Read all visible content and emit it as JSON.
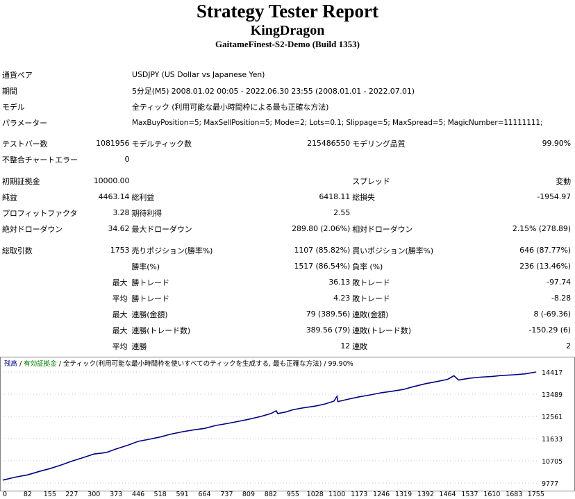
{
  "header": {
    "title": "Strategy Tester Report",
    "expert": "KingDragon",
    "server": "GaitameFinest-S2-Demo (Build 1353)"
  },
  "info": {
    "symbol_label": "通貨ペア",
    "symbol": "USDJPY (US Dollar vs Japanese Yen)",
    "period_label": "期間",
    "period": "5分足(M5) 2008.01.02 00:05 - 2022.06.30 23:55 (2008.01.01 - 2022.07.01)",
    "model_label": "モデル",
    "model": "全ティック (利用可能な最小時間枠による最も正確な方法)",
    "params_label": "パラメーター",
    "params": "MaxBuyPosition=5; MaxSellPosition=5; Mode=2; Lots=0.1; Slippage=5; MaxSpread=5; MagicNumber=11111111;"
  },
  "stats": {
    "bars_label": "テストバー数",
    "bars": "1081956",
    "ticks_label": "モデルティック数",
    "ticks": "215486550",
    "quality_label": "モデリング品質",
    "quality": "99.90%",
    "mismatch_label": "不整合チャートエラー",
    "mismatch": "0",
    "deposit_label": "初期証拠金",
    "deposit": "10000.00",
    "spread_label": "スプレッド",
    "spread": "変動",
    "net_label": "純益",
    "net": "4463.14",
    "gross_profit_label": "総利益",
    "gross_profit": "6418.11",
    "gross_loss_label": "総損失",
    "gross_loss": "-1954.97",
    "pf_label": "プロフィットファクタ",
    "pf": "3.28",
    "expected_label": "期待利得",
    "expected": "2.55",
    "abs_dd_label": "絶対ドローダウン",
    "abs_dd": "34.62",
    "max_dd_label": "最大ドローダウン",
    "max_dd": "289.80 (2.06%)",
    "rel_dd_label": "相対ドローダウン",
    "rel_dd": "2.15% (278.89)",
    "total_trades_label": "総取引数",
    "total_trades": "1753",
    "short_label": "売りポジション(勝率%)",
    "short": "1107 (85.82%)",
    "long_label": "買いポジション(勝率%)",
    "long": "646 (87.77%)",
    "win_rate_label": "勝率(%)",
    "win_rate": "1517 (86.54%)",
    "loss_rate_label": "負率 (%)",
    "loss_rate": "236 (13.46%)",
    "max_word": "最大",
    "avg_word": "平均",
    "largest_win_label": "勝トレード",
    "largest_win": "36.13",
    "largest_loss_label": "敗トレード",
    "largest_loss": "-97.74",
    "avg_win_label": "勝トレード",
    "avg_win": "4.23",
    "avg_loss_label": "敗トレード",
    "avg_loss": "-8.28",
    "max_cons_wins_label": "連勝(金額)",
    "max_cons_wins": "79 (389.56)",
    "max_cons_losses_label": "連敗(金額)",
    "max_cons_losses": "8 (-69.36)",
    "max_cons_profit_label": "連勝(トレード数)",
    "max_cons_profit": "389.56 (79)",
    "max_cons_loss_label": "連敗(トレード数)",
    "max_cons_loss": "-150.29 (6)",
    "avg_cons_wins_label": "連勝",
    "avg_cons_wins": "12",
    "avg_cons_losses_label": "連敗",
    "avg_cons_losses": "2"
  },
  "chart_legend": {
    "balance": "残高",
    "sep1": " / ",
    "equity": "有効証拠金",
    "sep2": " / ",
    "model": "全ティック(利用可能な最小時間枠を使いすべてのティックを生成する, 最も正確な方法)",
    "quality": " / 99.90%"
  },
  "colors": {
    "line": "#000080",
    "balance_legend": "#000080",
    "equity_legend": "#008000",
    "grid": "#c0c0c0"
  },
  "chart_data": {
    "type": "line",
    "x_ticks": [
      "0",
      "82",
      "155",
      "227",
      "300",
      "373",
      "446",
      "518",
      "591",
      "664",
      "737",
      "809",
      "882",
      "955",
      "1028",
      "1100",
      "1173",
      "1246",
      "1319",
      "1392",
      "1464",
      "1537",
      "1610",
      "1683",
      "1755"
    ],
    "y_ticks": [
      "14417",
      "13489",
      "12561",
      "11633",
      "10705",
      "9777"
    ],
    "xlim": [
      0,
      1760
    ],
    "ylim": [
      9777,
      14417
    ],
    "series": [
      {
        "x": [
          0,
          40,
          82,
          120,
          155,
          190,
          227,
          260,
          300,
          340,
          373,
          410,
          446,
          480,
          518,
          550,
          591,
          630,
          664,
          700,
          737,
          770,
          809,
          850,
          882,
          900,
          905,
          930,
          955,
          990,
          1028,
          1060,
          1090,
          1100,
          1103,
          1140,
          1173,
          1210,
          1246,
          1280,
          1319,
          1350,
          1392,
          1430,
          1464,
          1485,
          1500,
          1537,
          1570,
          1610,
          1640,
          1683,
          1720,
          1755
        ],
        "y": [
          9900,
          10020,
          10120,
          10260,
          10380,
          10520,
          10690,
          10820,
          10990,
          11050,
          11200,
          11350,
          11520,
          11600,
          11700,
          11810,
          11920,
          12000,
          12060,
          12180,
          12260,
          12340,
          12440,
          12560,
          12680,
          12800,
          12680,
          12740,
          12840,
          12920,
          12990,
          13080,
          13200,
          13400,
          13180,
          13290,
          13380,
          13460,
          13550,
          13610,
          13690,
          13800,
          13930,
          14020,
          14110,
          14260,
          14080,
          14160,
          14200,
          14230,
          14270,
          14300,
          14340,
          14417
        ]
      }
    ]
  }
}
